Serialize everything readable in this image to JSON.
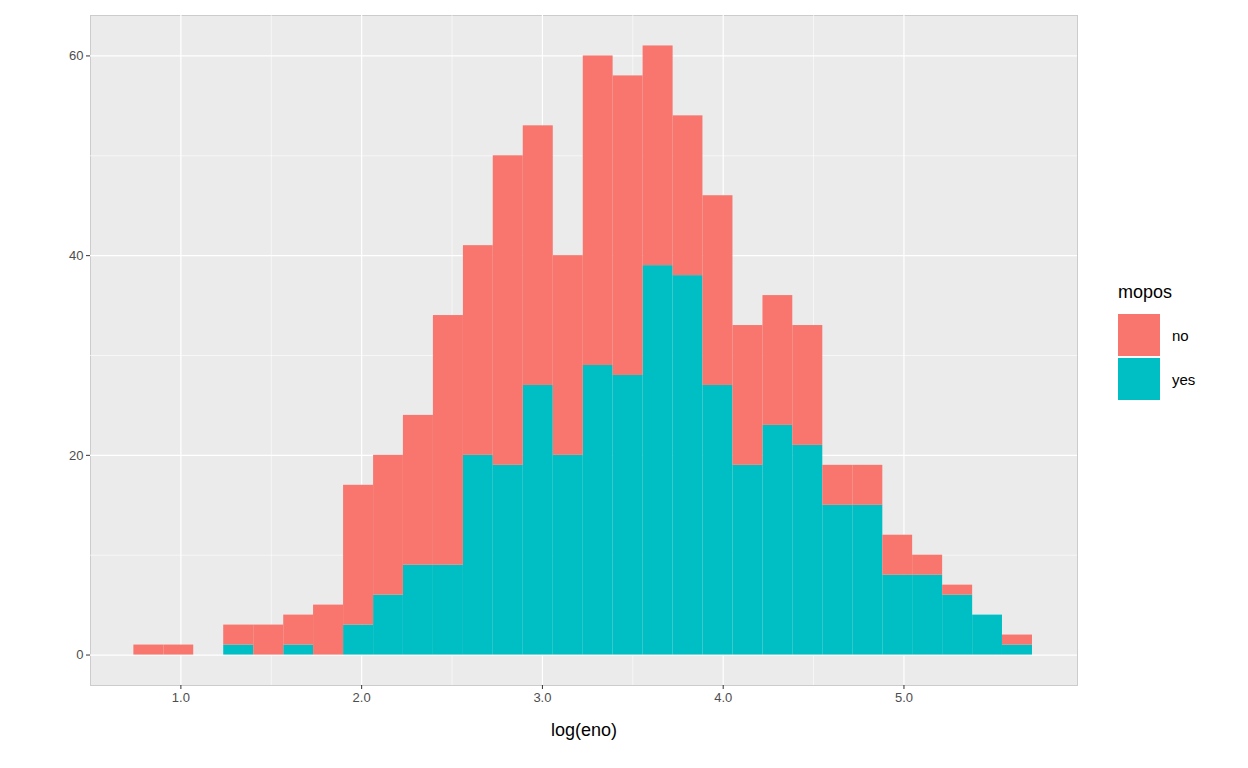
{
  "chart_data": {
    "type": "histogram",
    "xlabel": "log(eno)",
    "legend_title": "mopos",
    "bins": [
      0.74,
      0.906,
      1.071,
      1.237,
      1.403,
      1.569,
      1.734,
      1.9,
      2.066,
      2.231,
      2.397,
      2.563,
      2.728,
      2.894,
      3.06,
      3.226,
      3.391,
      3.557,
      3.723,
      3.888,
      4.054,
      4.22,
      4.385,
      4.551,
      4.717,
      4.883,
      5.048,
      5.214,
      5.38,
      5.545,
      5.711
    ],
    "series": [
      {
        "name": "no",
        "color": "#F8766D",
        "values": [
          1,
          1,
          0,
          2,
          3,
          3,
          5,
          14,
          14,
          15,
          25,
          21,
          31,
          26,
          20,
          31,
          30,
          22,
          16,
          19,
          14,
          13,
          12,
          4,
          4,
          4,
          2,
          1,
          0,
          1
        ]
      },
      {
        "name": "yes",
        "color": "#00BFC4",
        "values": [
          0,
          0,
          0,
          1,
          0,
          1,
          0,
          3,
          6,
          9,
          9,
          20,
          19,
          27,
          20,
          29,
          28,
          39,
          38,
          27,
          19,
          23,
          21,
          15,
          15,
          8,
          8,
          6,
          4,
          1
        ]
      }
    ],
    "stacked": true,
    "xlim": [
      0.5,
      5.96
    ],
    "xticks": [
      1,
      2,
      3,
      4,
      5
    ],
    "ylim": [
      -3.05,
      64.05
    ],
    "yticks": [
      0,
      20,
      40,
      60
    ],
    "grid": true,
    "legend": "right"
  }
}
